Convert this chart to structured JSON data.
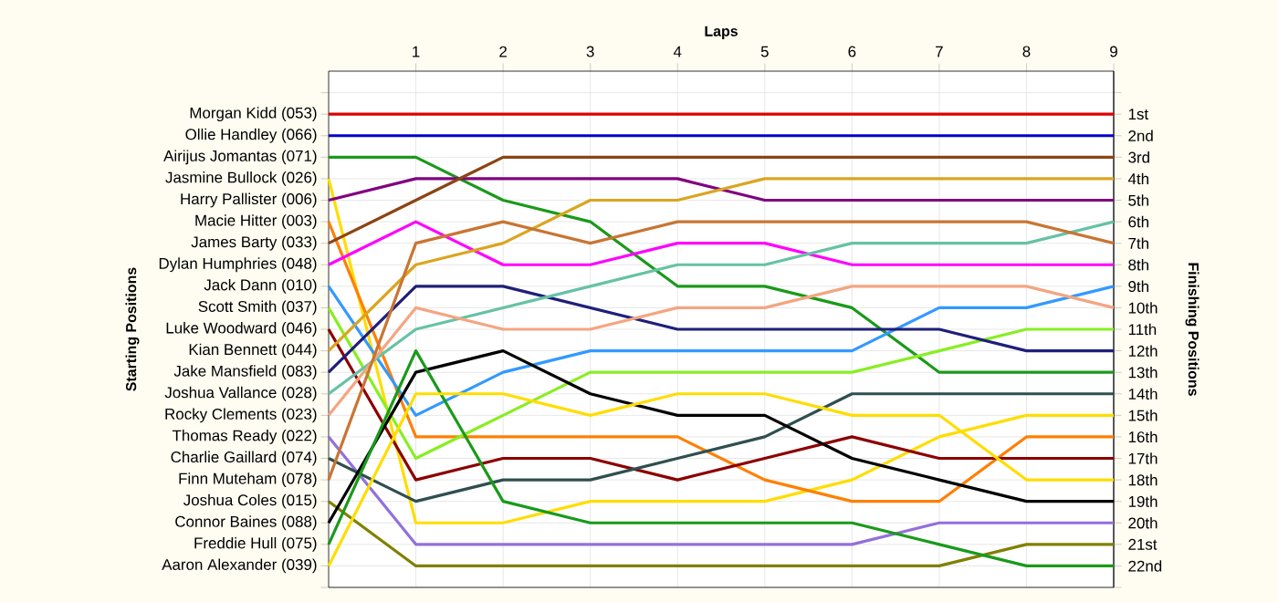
{
  "chart_data": {
    "type": "line",
    "xlabel": "Laps",
    "y2label": "Finishing Positions",
    "annotations": [
      "Starting Positions"
    ],
    "x": [
      0,
      1,
      2,
      3,
      4,
      5,
      6,
      7,
      8,
      9
    ],
    "xlim": [
      0,
      9
    ],
    "xticks": [
      1,
      2,
      3,
      4,
      5,
      6,
      7,
      8,
      9
    ],
    "y2lim": [
      23,
      -1
    ],
    "y2ticks": [
      {
        "value": 0,
        "label": null
      },
      {
        "value": 1,
        "label": "1st"
      },
      {
        "value": 2,
        "label": "2nd"
      },
      {
        "value": 3,
        "label": "3rd"
      },
      {
        "value": 4,
        "label": "4th"
      },
      {
        "value": 5,
        "label": "5th"
      },
      {
        "value": 6,
        "label": "6th"
      },
      {
        "value": 7,
        "label": "7th"
      },
      {
        "value": 8,
        "label": "8th"
      },
      {
        "value": 9,
        "label": "9th"
      },
      {
        "value": 10,
        "label": "10th"
      },
      {
        "value": 11,
        "label": "11th"
      },
      {
        "value": 12,
        "label": "12th"
      },
      {
        "value": 13,
        "label": "13th"
      },
      {
        "value": 14,
        "label": "14th"
      },
      {
        "value": 15,
        "label": "15th"
      },
      {
        "value": 16,
        "label": "16th"
      },
      {
        "value": 17,
        "label": "17th"
      },
      {
        "value": 18,
        "label": "18th"
      },
      {
        "value": 19,
        "label": "19th"
      },
      {
        "value": 20,
        "label": "20th"
      },
      {
        "value": 21,
        "label": "21st"
      },
      {
        "value": 22,
        "label": "22nd"
      },
      {
        "value": 23,
        "label": null
      }
    ],
    "grid": true,
    "series": [
      {
        "name": "Morgan Kidd (053)",
        "axis": "y2",
        "color": "#dd0000",
        "values": [
          1,
          1,
          1,
          1,
          1,
          1,
          1,
          1,
          1,
          1
        ]
      },
      {
        "name": "Ollie Handley (066)",
        "axis": "y2",
        "color": "#0000cc",
        "values": [
          2,
          2,
          2,
          2,
          2,
          2,
          2,
          2,
          2,
          2
        ]
      },
      {
        "name": "Airijus Jomantas (071)",
        "axis": "y2",
        "color": "#1a9a1a",
        "values": [
          3,
          3,
          5,
          6,
          9,
          9,
          10,
          13,
          13,
          13
        ]
      },
      {
        "name": "Jasmine Bullock (026)",
        "axis": "y2",
        "color": "#ffdd00",
        "values": [
          4,
          20,
          20,
          19,
          19,
          19,
          18,
          16,
          15,
          15
        ]
      },
      {
        "name": "Harry Pallister (006)",
        "axis": "y2",
        "color": "#800080",
        "values": [
          5,
          4,
          4,
          4,
          4,
          5,
          5,
          5,
          5,
          5
        ]
      },
      {
        "name": "Macie Hitter (003)",
        "axis": "y2",
        "color": "#ff7f00",
        "values": [
          6,
          16,
          16,
          16,
          16,
          18,
          19,
          19,
          16,
          16
        ]
      },
      {
        "name": "James Barty (033)",
        "axis": "y2",
        "color": "#8b4513",
        "values": [
          7,
          5,
          3,
          3,
          3,
          3,
          3,
          3,
          3,
          3
        ]
      },
      {
        "name": "Dylan Humphries (048)",
        "axis": "y2",
        "color": "#ff00ff",
        "values": [
          8,
          6,
          8,
          8,
          7,
          7,
          8,
          8,
          8,
          8
        ]
      },
      {
        "name": "Jack Dann (010)",
        "axis": "y2",
        "color": "#3399ff",
        "values": [
          9,
          15,
          13,
          12,
          12,
          12,
          12,
          10,
          10,
          9
        ]
      },
      {
        "name": "Scott Smith (037)",
        "axis": "y2",
        "color": "#88ee22",
        "values": [
          10,
          17,
          15,
          13,
          13,
          13,
          13,
          12,
          11,
          11
        ]
      },
      {
        "name": "Luke Woodward (046)",
        "axis": "y2",
        "color": "#8b0000",
        "values": [
          11,
          18,
          17,
          17,
          18,
          17,
          16,
          17,
          17,
          17
        ]
      },
      {
        "name": "Kian Bennett (044)",
        "axis": "y2",
        "color": "#daa520",
        "values": [
          12,
          8,
          7,
          5,
          5,
          4,
          4,
          4,
          4,
          4
        ]
      },
      {
        "name": "Jake Mansfield (083)",
        "axis": "y2",
        "color": "#1f1f7a",
        "values": [
          13,
          9,
          9,
          10,
          11,
          11,
          11,
          11,
          12,
          12
        ]
      },
      {
        "name": "Joshua Vallance (028)",
        "axis": "y2",
        "color": "#66c2a5",
        "values": [
          14,
          11,
          10,
          9,
          8,
          8,
          7,
          7,
          7,
          6
        ]
      },
      {
        "name": "Rocky Clements (023)",
        "axis": "y2",
        "color": "#f4a582",
        "values": [
          15,
          10,
          11,
          11,
          10,
          10,
          9,
          9,
          9,
          10
        ]
      },
      {
        "name": "Thomas Ready (022)",
        "axis": "y2",
        "color": "#9370db",
        "values": [
          16,
          21,
          21,
          21,
          21,
          21,
          21,
          20,
          20,
          20
        ]
      },
      {
        "name": "Charlie Gaillard (074)",
        "axis": "y2",
        "color": "#2f4f4f",
        "values": [
          17,
          19,
          18,
          18,
          17,
          16,
          14,
          14,
          14,
          14
        ]
      },
      {
        "name": "Finn Muteham (078)",
        "axis": "y2",
        "color": "#c87533",
        "values": [
          18,
          7,
          6,
          7,
          6,
          6,
          6,
          6,
          6,
          7
        ]
      },
      {
        "name": "Joshua Coles (015)",
        "axis": "y2",
        "color": "#808000",
        "values": [
          19,
          22,
          22,
          22,
          22,
          22,
          22,
          22,
          21,
          21
        ]
      },
      {
        "name": "Connor Baines (088)",
        "axis": "y2",
        "color": "#000000",
        "values": [
          20,
          13,
          12,
          14,
          15,
          15,
          17,
          18,
          19,
          19
        ]
      },
      {
        "name": "Freddie Hull (075)",
        "axis": "y2",
        "color": "#1a9a1a",
        "values": [
          21,
          12,
          19,
          20,
          20,
          20,
          20,
          21,
          22,
          22
        ]
      },
      {
        "name": "Aaron Alexander (039)",
        "axis": "y2",
        "color": "#ffdd00",
        "values": [
          22,
          14,
          14,
          15,
          14,
          14,
          15,
          15,
          18,
          18
        ]
      }
    ]
  }
}
